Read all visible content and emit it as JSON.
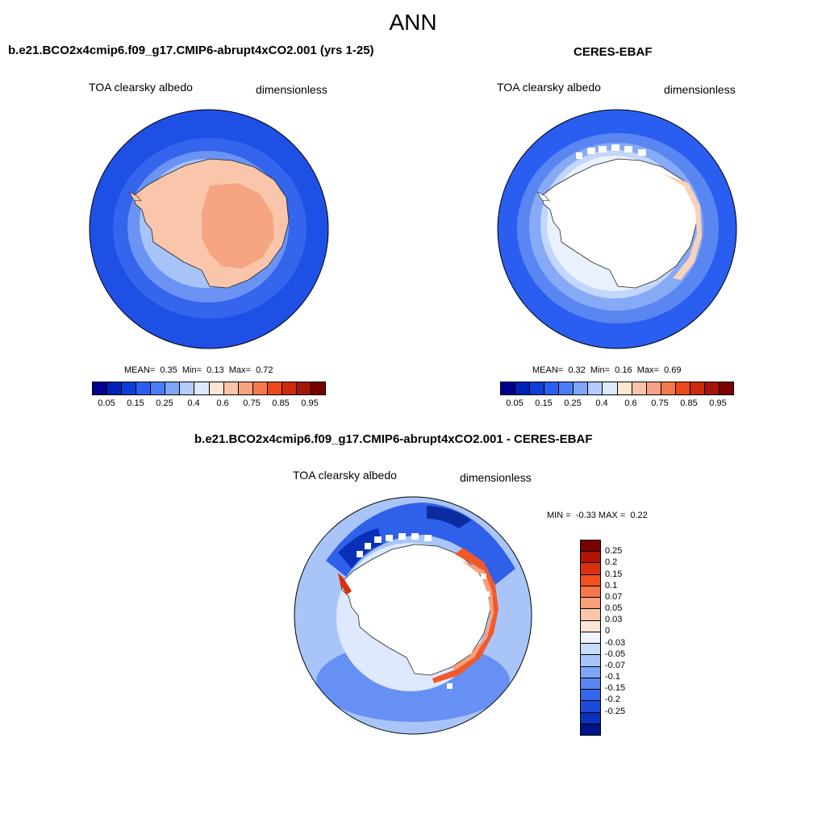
{
  "page": {
    "title": "ANN"
  },
  "panels": {
    "model": {
      "title": "b.e21.BCO2x4cmip6.f09_g17.CMIP6-abrupt4xCO2.001 (yrs 1-25)",
      "variable": "TOA clearsky albedo",
      "units": "dimensionless",
      "stats": {
        "mean_label": "MEAN=",
        "mean": "0.35",
        "min_label": "Min=",
        "min": "0.13",
        "max_label": "Max=",
        "max": "0.72"
      }
    },
    "obs": {
      "title": "CERES-EBAF",
      "variable": "TOA clearsky albedo",
      "units": "dimensionless",
      "stats": {
        "mean_label": "MEAN=",
        "mean": "0.32",
        "min_label": "Min=",
        "min": "0.16",
        "max_label": "Max=",
        "max": "0.69"
      }
    },
    "diff": {
      "title": "b.e21.BCO2x4cmip6.f09_g17.CMIP6-abrupt4xCO2.001 - CERES-EBAF",
      "variable": "TOA clearsky albedo",
      "units": "dimensionless",
      "stats": {
        "min_label": "MIN =",
        "min": "-0.33",
        "max_label": "MAX =",
        "max": "0.22"
      }
    }
  },
  "colorbars": {
    "absolute": {
      "colors": [
        "#00008c",
        "#0022b8",
        "#0b3fd6",
        "#2a5ff0",
        "#4a7df5",
        "#7fa6f8",
        "#b4cdfb",
        "#dde9fd",
        "#fde6d2",
        "#f9c5a8",
        "#f7a482",
        "#f47a4d",
        "#ec4a1c",
        "#cc2a0c",
        "#a31506",
        "#7a0000"
      ],
      "labels": [
        "0.05",
        "0.15",
        "0.25",
        "0.4",
        "0.6",
        "0.75",
        "0.85",
        "0.95"
      ]
    },
    "difference": {
      "colors": [
        "#7a0000",
        "#b01404",
        "#d9300c",
        "#f2501e",
        "#f6784a",
        "#f7a07a",
        "#f9c6a8",
        "#fde6d8",
        "#eef4fd",
        "#c8dcfb",
        "#a6c4f8",
        "#7fa6f6",
        "#5a86f2",
        "#3566ec",
        "#1a49dc",
        "#0a32bc",
        "#00148a"
      ],
      "labels": [
        "0.25",
        "0.2",
        "0.15",
        "0.1",
        "0.07",
        "0.05",
        "0.03",
        "0",
        "-0.03",
        "-0.05",
        "-0.07",
        "-0.1",
        "-0.15",
        "-0.2",
        "-0.25"
      ]
    }
  }
}
